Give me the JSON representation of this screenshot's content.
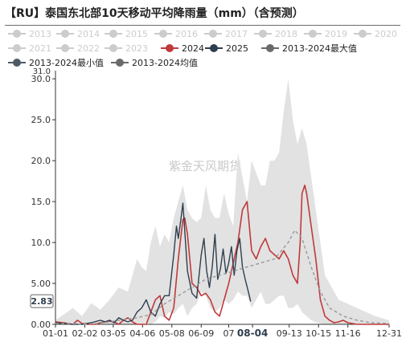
{
  "chart_data": {
    "type": "line",
    "title": "【RU】泰国东北部10天移动平均降雨量（mm）（含预测）",
    "ylim": [
      0,
      31
    ],
    "yticks": [
      "0.00",
      "5.00",
      "10.0",
      "15.0",
      "20.0",
      "25.0",
      "30.0"
    ],
    "ytick_values": [
      0,
      5,
      10,
      15,
      20,
      25,
      30
    ],
    "ytop_label": "31.0",
    "xlim": [
      1,
      365
    ],
    "xticks": [
      "01-01",
      "02-02",
      "03-05",
      "04-06",
      "05-08",
      "06-09",
      "07",
      "08-04",
      "09-13",
      "10-15",
      "11-16",
      "12-31"
    ],
    "xtick_days": [
      1,
      33,
      64,
      96,
      128,
      160,
      190,
      216,
      256,
      288,
      320,
      365
    ],
    "highlighted_xtick": "08-04",
    "current_value_label": "2.83",
    "current_value": 2.83,
    "watermark": "紫金天风期货",
    "legend": {
      "placement": "top",
      "inactive_color": "#cccccc",
      "items": [
        {
          "label": "2013",
          "active": false
        },
        {
          "label": "2014",
          "active": false
        },
        {
          "label": "2015",
          "active": false
        },
        {
          "label": "2016",
          "active": false
        },
        {
          "label": "2017",
          "active": false
        },
        {
          "label": "2018",
          "active": false
        },
        {
          "label": "2019",
          "active": false
        },
        {
          "label": "2020",
          "active": false
        },
        {
          "label": "2021",
          "active": false
        },
        {
          "label": "2022",
          "active": false
        },
        {
          "label": "2023",
          "active": false
        },
        {
          "label": "2024",
          "active": true,
          "color": "#c0393b"
        },
        {
          "label": "2025",
          "active": true,
          "color": "#2e3e4e"
        },
        {
          "label": "2013-2024最大值",
          "active": true,
          "color": "#6a6a6a"
        },
        {
          "label": "2013-2024最小值",
          "active": true,
          "color": "#4d5a66"
        },
        {
          "label": "2013-2024均值",
          "active": true,
          "color": "#6a6a6a"
        }
      ]
    },
    "band": {
      "fill": "#e2e2e2",
      "x": [
        1,
        10,
        20,
        30,
        40,
        50,
        60,
        70,
        80,
        90,
        95,
        100,
        105,
        110,
        115,
        120,
        125,
        130,
        135,
        140,
        145,
        150,
        155,
        160,
        165,
        170,
        175,
        180,
        185,
        190,
        195,
        200,
        205,
        210,
        215,
        220,
        225,
        230,
        235,
        240,
        245,
        250,
        255,
        260,
        265,
        270,
        275,
        280,
        285,
        290,
        295,
        300,
        310,
        320,
        330,
        340,
        350,
        365
      ],
      "max": [
        0.5,
        1.2,
        2.0,
        1.0,
        2.6,
        1.8,
        3.0,
        4.5,
        4.0,
        8.0,
        7.0,
        6.5,
        10.0,
        12.0,
        9.5,
        11.0,
        10.0,
        13.0,
        15.0,
        17.0,
        14.0,
        13.0,
        12.5,
        13.0,
        17.0,
        14.0,
        13.0,
        13.0,
        16.0,
        13.5,
        12.0,
        21.0,
        18.0,
        15.0,
        20.0,
        18.5,
        17.0,
        17.0,
        20.0,
        20.0,
        21.0,
        26.0,
        30.0,
        25.0,
        22.0,
        24.0,
        22.0,
        18.0,
        14.0,
        10.0,
        6.0,
        5.0,
        3.0,
        2.5,
        2.0,
        1.5,
        1.0,
        0.5
      ],
      "min": [
        0.0,
        0.0,
        0.0,
        0.0,
        0.0,
        0.0,
        0.0,
        0.0,
        0.0,
        0.0,
        0.0,
        0.2,
        0.0,
        0.3,
        1.0,
        0.8,
        1.5,
        1.2,
        2.0,
        2.5,
        1.0,
        2.0,
        2.5,
        4.0,
        3.5,
        2.0,
        1.5,
        2.0,
        3.0,
        2.5,
        3.0,
        4.0,
        3.5,
        3.5,
        2.0,
        3.0,
        4.0,
        2.5,
        2.5,
        3.0,
        3.5,
        3.5,
        2.0,
        2.0,
        2.5,
        1.5,
        1.0,
        0.5,
        0.3,
        0.1,
        0.0,
        0.0,
        0.0,
        0.0,
        0.0,
        0.0,
        0.0,
        0.0
      ]
    },
    "series": [
      {
        "name": "2024",
        "color": "#c0393b",
        "width": 1.6,
        "x": [
          1,
          10,
          15,
          20,
          25,
          30,
          35,
          40,
          45,
          50,
          55,
          60,
          65,
          70,
          75,
          80,
          85,
          90,
          95,
          100,
          105,
          110,
          115,
          120,
          125,
          130,
          135,
          140,
          142,
          145,
          150,
          155,
          160,
          165,
          170,
          175,
          180,
          185,
          190,
          195,
          200,
          205,
          210,
          215,
          220,
          225,
          230,
          235,
          240,
          245,
          250,
          255,
          260,
          265,
          268,
          270,
          273,
          275,
          280,
          285,
          290,
          295,
          300,
          305,
          310,
          315,
          320,
          330,
          340,
          350,
          365
        ],
        "y": [
          0.3,
          0.2,
          0.1,
          0.0,
          0.5,
          0.1,
          0.0,
          0.0,
          0.0,
          0.2,
          0.3,
          0.4,
          0.3,
          0.0,
          0.5,
          0.8,
          0.3,
          0.0,
          0.0,
          0.0,
          1.5,
          3.0,
          3.5,
          1.0,
          0.5,
          2.0,
          8.0,
          12.8,
          13.0,
          11.0,
          5.0,
          4.5,
          3.5,
          3.8,
          3.0,
          1.5,
          1.0,
          3.0,
          5.0,
          7.5,
          10.0,
          14.0,
          15.0,
          9.0,
          8.0,
          9.5,
          10.5,
          9.0,
          8.5,
          8.0,
          9.0,
          8.0,
          6.0,
          5.0,
          10.0,
          16.0,
          17.0,
          16.0,
          12.0,
          8.0,
          3.0,
          1.0,
          0.5,
          0.2,
          0.3,
          0.5,
          0.2,
          0.0,
          0.0,
          0.0,
          0.0
        ]
      },
      {
        "name": "2025",
        "color": "#2e3e4e",
        "width": 1.4,
        "x": [
          1,
          10,
          20,
          30,
          40,
          50,
          55,
          60,
          65,
          70,
          75,
          80,
          85,
          90,
          95,
          100,
          105,
          110,
          115,
          120,
          125,
          130,
          133,
          135,
          138,
          140,
          145,
          150,
          155,
          160,
          163,
          166,
          169,
          172,
          175,
          178,
          181,
          184,
          187,
          190,
          193,
          196,
          199,
          202,
          205,
          208,
          211,
          214
        ],
        "y": [
          0.2,
          0.1,
          0.0,
          0.0,
          0.2,
          0.5,
          0.3,
          0.5,
          0.2,
          0.8,
          0.5,
          0.3,
          0.5,
          1.5,
          2.0,
          3.0,
          1.5,
          1.0,
          2.5,
          3.5,
          3.5,
          8.5,
          12.0,
          10.5,
          13.0,
          14.8,
          6.5,
          3.8,
          3.2,
          8.5,
          10.5,
          6.5,
          4.5,
          7.0,
          11.0,
          5.5,
          6.8,
          9.2,
          6.2,
          7.5,
          9.5,
          6.0,
          9.0,
          10.5,
          7.0,
          5.5,
          4.2,
          2.8
        ]
      },
      {
        "name": "2013-2024均值",
        "color": "#999999",
        "width": 1.4,
        "dash": "4 3",
        "x": [
          1,
          15,
          30,
          45,
          60,
          75,
          90,
          105,
          120,
          135,
          150,
          165,
          180,
          195,
          210,
          225,
          240,
          255,
          262,
          270,
          280,
          290,
          300,
          315,
          330,
          345,
          365
        ],
        "y": [
          0.1,
          0.1,
          0.0,
          0.1,
          0.3,
          0.6,
          0.8,
          1.2,
          2.5,
          3.5,
          4.5,
          5.5,
          6.0,
          6.5,
          7.0,
          7.5,
          8.0,
          10.0,
          11.5,
          10.5,
          7.0,
          4.0,
          2.0,
          1.0,
          0.5,
          0.2,
          0.1
        ]
      }
    ]
  }
}
